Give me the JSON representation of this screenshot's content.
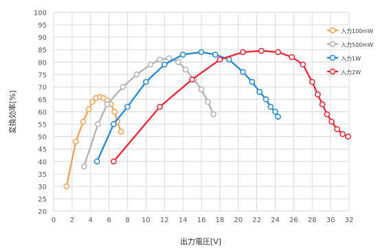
{
  "chart_data": {
    "type": "scatter",
    "title": "",
    "xlabel": "出力電圧[V]",
    "ylabel": "変換効率[%]",
    "xlim": [
      0,
      32
    ],
    "ylim": [
      20,
      100
    ],
    "x_ticks": [
      "0",
      "2",
      "4",
      "6",
      "8",
      "10",
      "12",
      "14",
      "16",
      "18",
      "20",
      "22",
      "24",
      "26",
      "28",
      "30",
      "32"
    ],
    "y_ticks": [
      "20",
      "25",
      "30",
      "35",
      "40",
      "45",
      "50",
      "55",
      "60",
      "65",
      "70",
      "75",
      "80",
      "85",
      "90",
      "95",
      "100"
    ],
    "grid": true,
    "legend_position": "top-right",
    "series": [
      {
        "name": "入力100mW",
        "color": "#f2a65a",
        "x": [
          1.4,
          2.4,
          3.2,
          3.8,
          4.2,
          4.6,
          5.0,
          5.4,
          5.8,
          6.2,
          6.6,
          6.9,
          7.3
        ],
        "y": [
          30,
          48,
          56,
          61,
          64,
          65.5,
          66,
          65.5,
          64.5,
          63,
          60,
          56,
          52
        ]
      },
      {
        "name": "入力500mW",
        "color": "#b5b5b5",
        "x": [
          3.3,
          4.8,
          5.8,
          7.5,
          9.0,
          10.5,
          11.5,
          12.5,
          13.5,
          14.3,
          15.2,
          16.0,
          16.7,
          17.3
        ],
        "y": [
          38,
          55,
          63,
          70,
          75,
          79,
          81,
          81.5,
          80,
          77,
          73,
          69,
          64,
          59
        ]
      },
      {
        "name": "入力1W",
        "color": "#2e8fd8",
        "x": [
          4.7,
          6.5,
          8.0,
          10.0,
          12.0,
          14.0,
          16.0,
          17.5,
          19.0,
          20.5,
          21.5,
          22.3,
          23.0,
          23.5,
          24.0,
          24.3
        ],
        "y": [
          40,
          55,
          62,
          72,
          79,
          83,
          84,
          83,
          81,
          76,
          72,
          68,
          65,
          62,
          60,
          58
        ]
      },
      {
        "name": "入力2W",
        "color": "#e8323e",
        "x": [
          6.5,
          11.5,
          15.0,
          18.0,
          20.5,
          22.5,
          24.3,
          25.8,
          27.0,
          28.0,
          28.6,
          29.1,
          29.6,
          30.1,
          30.7,
          31.3,
          31.9
        ],
        "y": [
          40,
          62,
          73,
          81,
          84,
          84.5,
          84,
          82,
          79,
          72,
          67,
          63,
          59,
          56,
          53,
          51,
          50
        ]
      }
    ]
  }
}
